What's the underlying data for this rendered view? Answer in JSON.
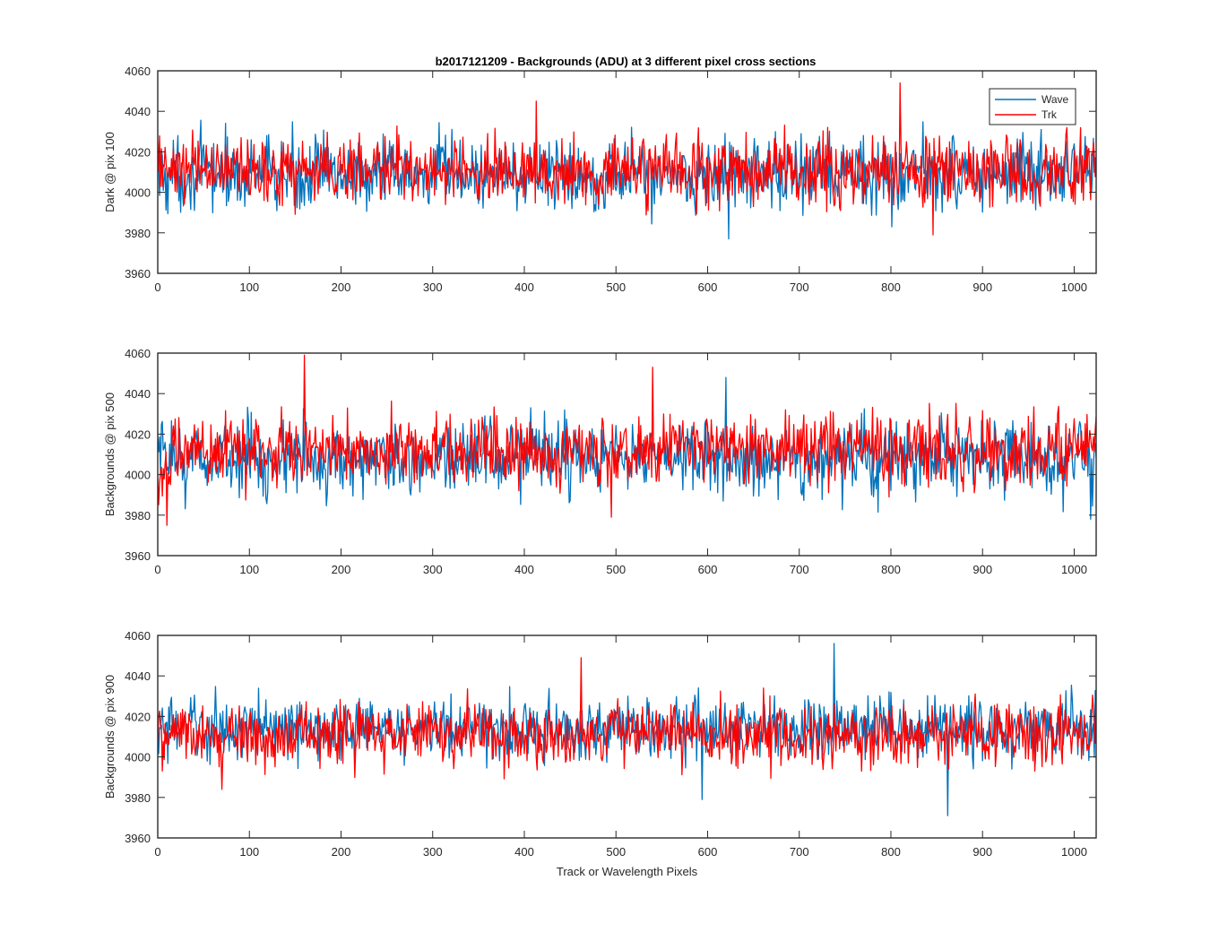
{
  "figure": {
    "title": "b2017121209 - Backgrounds (ADU) at 3 different pixel cross sections"
  },
  "colors": {
    "wave": "#0072BD",
    "trk": "#FF0000"
  },
  "chart_data": [
    {
      "type": "line",
      "title": "b2017121209 - Backgrounds (ADU) at 3 different pixel cross sections",
      "xlabel": "",
      "ylabel": "Dark @ pix 100",
      "xlim": [
        0,
        1024
      ],
      "ylim": [
        3960,
        4060
      ],
      "xticks": [
        0,
        100,
        200,
        300,
        400,
        500,
        600,
        700,
        800,
        900,
        1000
      ],
      "yticks": [
        3960,
        3980,
        4000,
        4020,
        4040,
        4060
      ],
      "grid": false,
      "legend": "top-right",
      "series": [
        {
          "name": "Wave",
          "mean": 4009,
          "noise_amplitude": 13,
          "approx_range": [
            3977,
            4041
          ]
        },
        {
          "name": "Trk",
          "mean": 4011,
          "noise_amplitude": 12,
          "approx_range": [
            3979,
            4054
          ]
        }
      ],
      "notable_points": [
        {
          "series": "Trk",
          "x": 413,
          "y": 4045
        },
        {
          "series": "Trk",
          "x": 810,
          "y": 4054
        },
        {
          "series": "Wave",
          "x": 623,
          "y": 3977
        },
        {
          "series": "Trk",
          "x": 846,
          "y": 3979
        }
      ]
    },
    {
      "type": "line",
      "xlabel": "",
      "ylabel": "Backgrounds @ pix 500",
      "xlim": [
        0,
        1024
      ],
      "ylim": [
        3960,
        4060
      ],
      "xticks": [
        0,
        100,
        200,
        300,
        400,
        500,
        600,
        700,
        800,
        900,
        1000
      ],
      "yticks": [
        3960,
        3980,
        4000,
        4020,
        4040,
        4060
      ],
      "grid": false,
      "legend": "none",
      "series": [
        {
          "name": "Wave",
          "mean": 4008,
          "noise_amplitude": 13,
          "approx_range": [
            3978,
            4048
          ]
        },
        {
          "name": "Trk",
          "mean": 4012,
          "noise_amplitude": 12,
          "approx_range": [
            3975,
            4059
          ]
        }
      ],
      "notable_points": [
        {
          "series": "Trk",
          "x": 160,
          "y": 4059
        },
        {
          "series": "Trk",
          "x": 540,
          "y": 4053
        },
        {
          "series": "Wave",
          "x": 620,
          "y": 4048
        },
        {
          "series": "Trk",
          "x": 10,
          "y": 3975
        },
        {
          "series": "Trk",
          "x": 495,
          "y": 3979
        },
        {
          "series": "Wave",
          "x": 1018,
          "y": 3978
        }
      ]
    },
    {
      "type": "line",
      "xlabel": "Track or Wavelength Pixels",
      "ylabel": "Backgrounds @ pix 900",
      "xlim": [
        0,
        1024
      ],
      "ylim": [
        3960,
        4060
      ],
      "xticks": [
        0,
        100,
        200,
        300,
        400,
        500,
        600,
        700,
        800,
        900,
        1000
      ],
      "yticks": [
        3960,
        3980,
        4000,
        4020,
        4040,
        4060
      ],
      "grid": false,
      "legend": "none",
      "series": [
        {
          "name": "Wave",
          "mean": 4014,
          "noise_amplitude": 11,
          "approx_range": [
            3971,
            4056
          ]
        },
        {
          "name": "Trk",
          "mean": 4011,
          "noise_amplitude": 11,
          "approx_range": [
            3984,
            4049
          ]
        }
      ],
      "notable_points": [
        {
          "series": "Wave",
          "x": 738,
          "y": 4056
        },
        {
          "series": "Trk",
          "x": 462,
          "y": 4049
        },
        {
          "series": "Wave",
          "x": 862,
          "y": 3971
        },
        {
          "series": "Wave",
          "x": 594,
          "y": 3979
        },
        {
          "series": "Trk",
          "x": 70,
          "y": 3984
        }
      ]
    }
  ]
}
